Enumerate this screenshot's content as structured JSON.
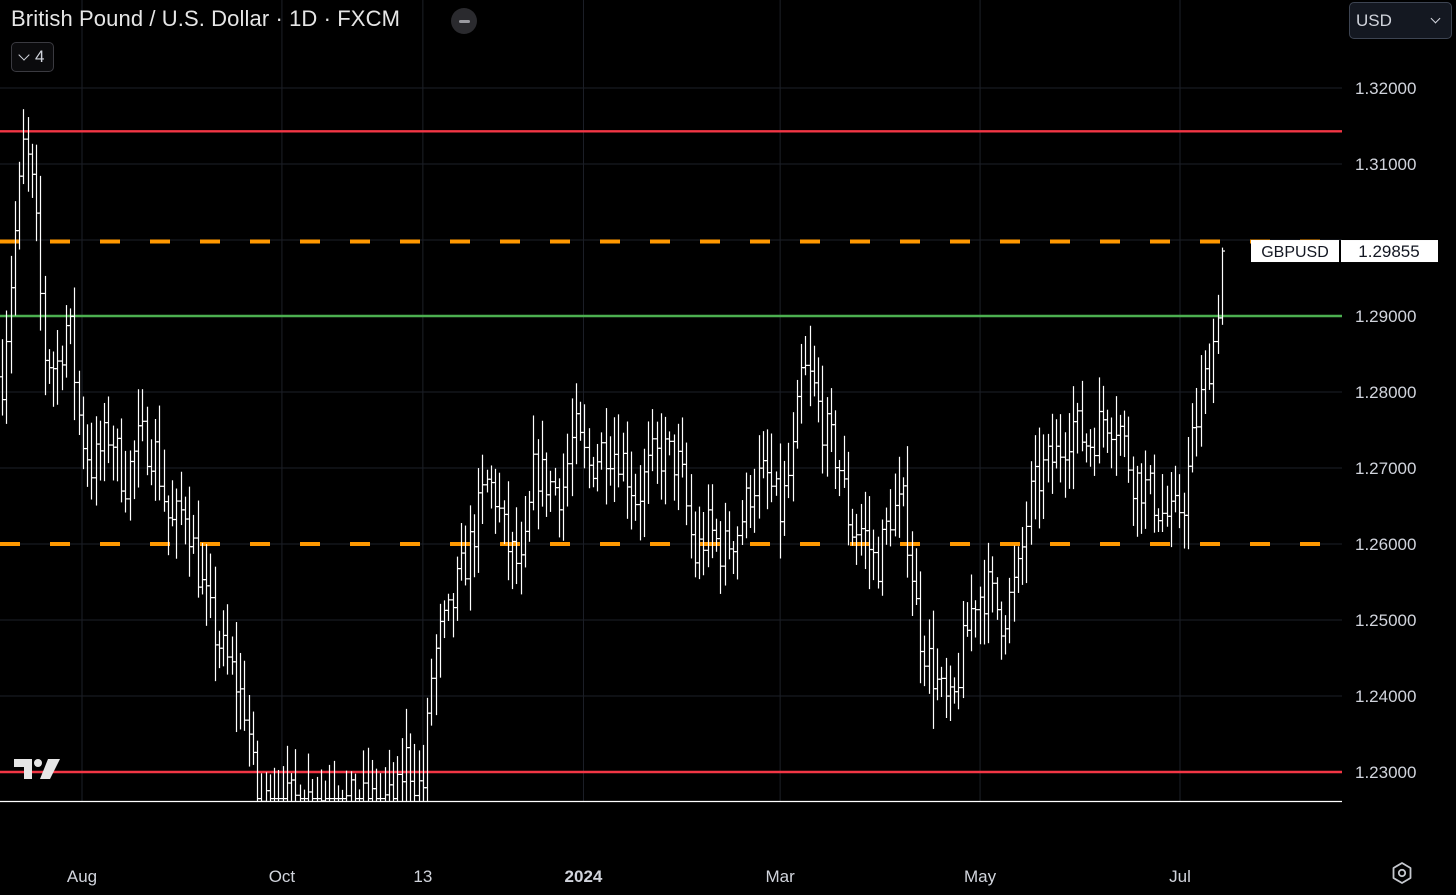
{
  "header": {
    "symbol_title": "British Pound / U.S. Dollar · 1D · FXCM",
    "indicators_count": "4",
    "currency": "USD"
  },
  "icons": {
    "collapse": "minus-icon",
    "indicators": "chevron-down-icon",
    "currency": "chevron-down-icon",
    "logo": "tradingview-logo-icon",
    "settings": "gear-icon"
  },
  "colors": {
    "background": "#000000",
    "bars": "#ffffff",
    "resistance": "#f23645",
    "orange_levels": "#ff9800",
    "green_level": "#4caf50",
    "grid": "#1e222d"
  },
  "chart_data": {
    "type": "ohlc",
    "title": "British Pound / U.S. Dollar · 1D · FXCM",
    "symbol": "GBPUSD",
    "last_price": "1.29855",
    "ylim": [
      1.226,
      1.331
    ],
    "y_ticks": [
      "1.32000",
      "1.31000",
      "1.29000",
      "1.28000",
      "1.27000",
      "1.26000",
      "1.25000",
      "1.24000",
      "1.23000"
    ],
    "x_ticks": [
      {
        "label": "Aug",
        "date": "2023-08-01",
        "bold": false
      },
      {
        "label": "Oct",
        "date": "2023-10-01",
        "bold": false
      },
      {
        "label": "13",
        "date": "2023-11-13",
        "bold": false
      },
      {
        "label": "2024",
        "date": "2024-01-01",
        "bold": true
      },
      {
        "label": "Mar",
        "date": "2024-03-01",
        "bold": false
      },
      {
        "label": "May",
        "date": "2024-05-01",
        "bold": false
      },
      {
        "label": "Jul",
        "date": "2024-07-01",
        "bold": false
      }
    ],
    "horizontal_levels": [
      {
        "value": 1.3143,
        "style": "solid",
        "color": "#f23645"
      },
      {
        "value": 1.2998,
        "style": "dashed",
        "color": "#ff9800"
      },
      {
        "value": 1.29,
        "style": "solid",
        "color": "#4caf50"
      },
      {
        "value": 1.26,
        "style": "dashed",
        "color": "#ff9800"
      },
      {
        "value": 1.23,
        "style": "solid",
        "color": "#f23645"
      }
    ],
    "path_anchors": [
      [
        0,
        1.279
      ],
      [
        14,
        1.3
      ],
      [
        24,
        1.313
      ],
      [
        34,
        1.305
      ],
      [
        44,
        1.285
      ],
      [
        56,
        1.283
      ],
      [
        68,
        1.29
      ],
      [
        80,
        1.275
      ],
      [
        92,
        1.27
      ],
      [
        110,
        1.275
      ],
      [
        124,
        1.268
      ],
      [
        140,
        1.274
      ],
      [
        155,
        1.272
      ],
      [
        170,
        1.262
      ],
      [
        185,
        1.265
      ],
      [
        200,
        1.255
      ],
      [
        215,
        1.248
      ],
      [
        232,
        1.243
      ],
      [
        246,
        1.238
      ],
      [
        256,
        1.226
      ],
      [
        285,
        1.226
      ],
      [
        316,
        1.227
      ],
      [
        330,
        1.226
      ],
      [
        396,
        1.226
      ],
      [
        405,
        1.232
      ],
      [
        422,
        1.227
      ],
      [
        432,
        1.244
      ],
      [
        440,
        1.248
      ],
      [
        448,
        1.25
      ],
      [
        458,
        1.255
      ],
      [
        466,
        1.258
      ],
      [
        476,
        1.263
      ],
      [
        486,
        1.268
      ],
      [
        494,
        1.267
      ],
      [
        506,
        1.26
      ],
      [
        522,
        1.256
      ],
      [
        534,
        1.27
      ],
      [
        548,
        1.268
      ],
      [
        562,
        1.267
      ],
      [
        574,
        1.275
      ],
      [
        588,
        1.27
      ],
      [
        604,
        1.273
      ],
      [
        620,
        1.272
      ],
      [
        636,
        1.266
      ],
      [
        652,
        1.271
      ],
      [
        666,
        1.272
      ],
      [
        680,
        1.27
      ],
      [
        694,
        1.258
      ],
      [
        708,
        1.262
      ],
      [
        722,
        1.259
      ],
      [
        738,
        1.262
      ],
      [
        752,
        1.268
      ],
      [
        766,
        1.269
      ],
      [
        780,
        1.264
      ],
      [
        792,
        1.271
      ],
      [
        802,
        1.283
      ],
      [
        812,
        1.281
      ],
      [
        824,
        1.275
      ],
      [
        838,
        1.271
      ],
      [
        850,
        1.262
      ],
      [
        862,
        1.262
      ],
      [
        876,
        1.257
      ],
      [
        890,
        1.264
      ],
      [
        904,
        1.265
      ],
      [
        918,
        1.249
      ],
      [
        930,
        1.244
      ],
      [
        944,
        1.239
      ],
      [
        952,
        1.238
      ],
      [
        962,
        1.246
      ],
      [
        974,
        1.253
      ],
      [
        988,
        1.254
      ],
      [
        1002,
        1.25
      ],
      [
        1018,
        1.256
      ],
      [
        1030,
        1.266
      ],
      [
        1044,
        1.27
      ],
      [
        1058,
        1.272
      ],
      [
        1072,
        1.276
      ],
      [
        1088,
        1.273
      ],
      [
        1104,
        1.277
      ],
      [
        1118,
        1.276
      ],
      [
        1132,
        1.269
      ],
      [
        1148,
        1.267
      ],
      [
        1162,
        1.264
      ],
      [
        1172,
        1.263
      ],
      [
        1184,
        1.266
      ],
      [
        1194,
        1.275
      ],
      [
        1204,
        1.281
      ],
      [
        1214,
        1.287
      ],
      [
        1222,
        1.298
      ]
    ]
  }
}
